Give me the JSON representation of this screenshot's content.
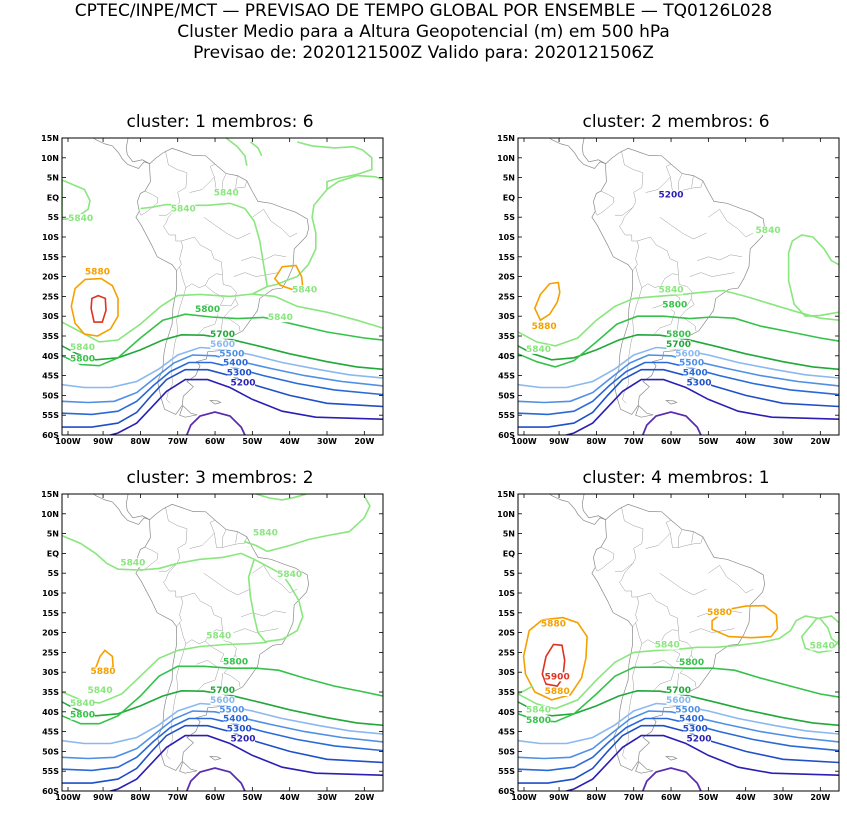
{
  "header": {
    "line1": "CPTEC/INPE/MCT — PREVISAO DE TEMPO GLOBAL POR ENSEMBLE — TQ0126L028",
    "line2": "Cluster Medio para a Altura Geopotencial (m) em 500 hPa",
    "line3": "Previsao de: 2020121500Z    Valido para: 2020121506Z"
  },
  "axes": {
    "lat_labels": [
      "15N",
      "10N",
      "5N",
      "EQ",
      "5S",
      "10S",
      "15S",
      "20S",
      "25S",
      "30S",
      "35S",
      "40S",
      "45S",
      "50S",
      "55S",
      "60S"
    ],
    "lon_labels": [
      "100W",
      "90W",
      "80W",
      "70W",
      "60W",
      "50W",
      "40W",
      "30W",
      "20W"
    ]
  },
  "contour_colors": {
    "5200": "#2a1fb4",
    "5300": "#1f4fc8",
    "5400": "#2a6ad8",
    "5500": "#4f8fe6",
    "5600": "#8ab8f0",
    "5700": "#22a83a",
    "5800": "#36c24a",
    "5840": "#8ae67e",
    "5880": "#f5a000",
    "5900": "#e0321e"
  },
  "panels": [
    {
      "title": "cluster: 1   membros: 6",
      "labels": [
        {
          "text": "5840",
          "color": "#8ae67e"
        },
        {
          "text": "5840",
          "color": "#8ae67e"
        },
        {
          "text": "5840",
          "color": "#8ae67e"
        },
        {
          "text": "5840",
          "color": "#8ae67e"
        },
        {
          "text": "5840",
          "color": "#8ae67e"
        },
        {
          "text": "5880",
          "color": "#f5a000"
        },
        {
          "text": "5840",
          "color": "#8ae67e"
        },
        {
          "text": "5800",
          "color": "#36c24a"
        },
        {
          "text": "5800",
          "color": "#36c24a"
        },
        {
          "text": "5700",
          "color": "#22a83a"
        },
        {
          "text": "5600",
          "color": "#8ab8f0"
        },
        {
          "text": "5500",
          "color": "#4f8fe6"
        },
        {
          "text": "5400",
          "color": "#2a6ad8"
        },
        {
          "text": "5300",
          "color": "#1f4fc8"
        },
        {
          "text": "5200",
          "color": "#2a1fb4"
        }
      ]
    },
    {
      "title": "cluster: 2   membros: 6",
      "labels": [
        {
          "text": "5840",
          "color": "#8ae67e"
        },
        {
          "text": "5840",
          "color": "#8ae67e"
        },
        {
          "text": "5880",
          "color": "#f5a000"
        },
        {
          "text": "5800",
          "color": "#36c24a"
        },
        {
          "text": "5840",
          "color": "#8ae67e"
        },
        {
          "text": "5800",
          "color": "#36c24a"
        },
        {
          "text": "5700",
          "color": "#22a83a"
        },
        {
          "text": "5600",
          "color": "#8ab8f0"
        },
        {
          "text": "5500",
          "color": "#4f8fe6"
        },
        {
          "text": "5400",
          "color": "#2a6ad8"
        },
        {
          "text": "5300",
          "color": "#1f4fc8"
        },
        {
          "text": "5200",
          "color": "#2a1fb4"
        }
      ]
    },
    {
      "title": "cluster: 3   membros: 2",
      "labels": [
        {
          "text": "5840",
          "color": "#8ae67e"
        },
        {
          "text": "5840",
          "color": "#8ae67e"
        },
        {
          "text": "5840",
          "color": "#8ae67e"
        },
        {
          "text": "5840",
          "color": "#8ae67e"
        },
        {
          "text": "5840",
          "color": "#8ae67e"
        },
        {
          "text": "5800",
          "color": "#36c24a"
        },
        {
          "text": "5880",
          "color": "#f5a000"
        },
        {
          "text": "5840",
          "color": "#8ae67e"
        },
        {
          "text": "5800",
          "color": "#36c24a"
        },
        {
          "text": "5700",
          "color": "#22a83a"
        },
        {
          "text": "5600",
          "color": "#8ab8f0"
        },
        {
          "text": "5500",
          "color": "#4f8fe6"
        },
        {
          "text": "5400",
          "color": "#2a6ad8"
        },
        {
          "text": "5300",
          "color": "#1f4fc8"
        },
        {
          "text": "5200",
          "color": "#2a1fb4"
        }
      ]
    },
    {
      "title": "cluster: 4   membros: 1",
      "labels": [
        {
          "text": "5880",
          "color": "#f5a000"
        },
        {
          "text": "5880",
          "color": "#f5a000"
        },
        {
          "text": "5840",
          "color": "#8ae67e"
        },
        {
          "text": "5840",
          "color": "#8ae67e"
        },
        {
          "text": "5800",
          "color": "#36c24a"
        },
        {
          "text": "5900",
          "color": "#e0321e"
        },
        {
          "text": "5880",
          "color": "#f5a000"
        },
        {
          "text": "5840",
          "color": "#8ae67e"
        },
        {
          "text": "5800",
          "color": "#36c24a"
        },
        {
          "text": "5700",
          "color": "#22a83a"
        },
        {
          "text": "5600",
          "color": "#8ab8f0"
        },
        {
          "text": "5500",
          "color": "#4f8fe6"
        },
        {
          "text": "5400",
          "color": "#2a6ad8"
        },
        {
          "text": "5300",
          "color": "#1f4fc8"
        },
        {
          "text": "5200",
          "color": "#2a1fb4"
        }
      ]
    }
  ]
}
